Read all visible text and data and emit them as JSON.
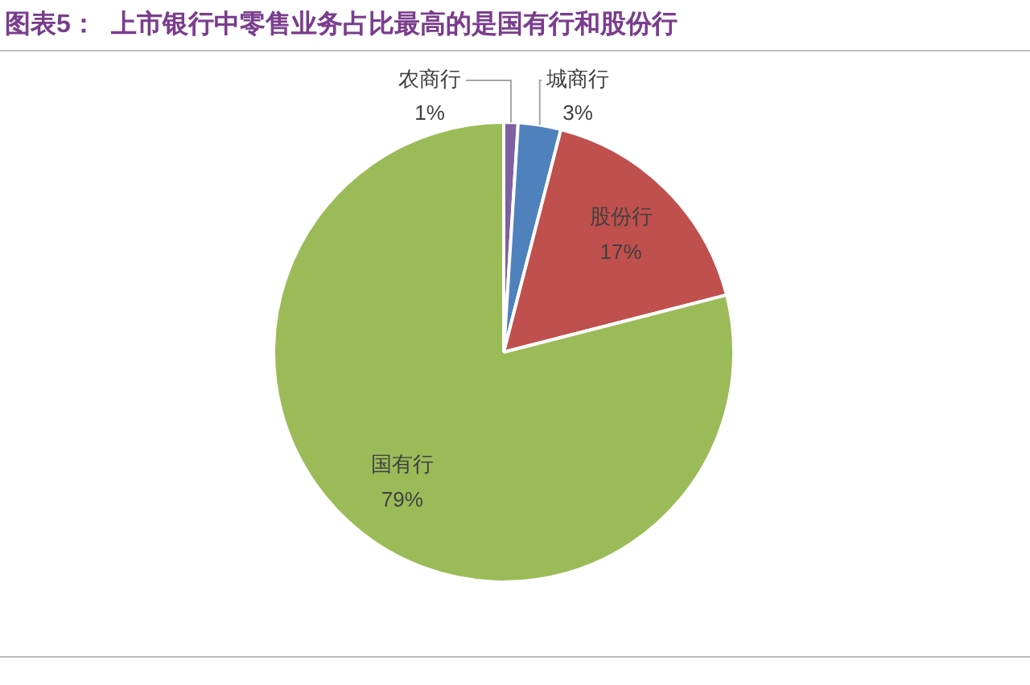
{
  "chart_data": {
    "type": "pie",
    "title": "图表5：  上市银行中零售业务占比最高的是国有行和股份行",
    "categories": [
      "农商行",
      "城商行",
      "股份行",
      "国有行"
    ],
    "values": [
      1,
      3,
      17,
      79
    ],
    "colors": [
      "#7f60a0",
      "#4f81bd",
      "#c0504d",
      "#9bbb59"
    ],
    "value_labels": [
      "1%",
      "3%",
      "17%",
      "79%"
    ]
  }
}
